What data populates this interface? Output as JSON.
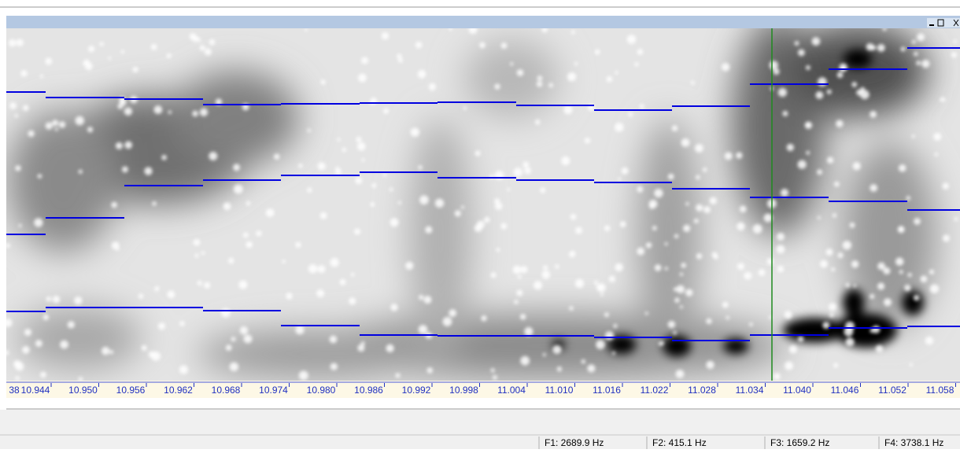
{
  "time_axis": {
    "labels": [
      "38",
      "10.944",
      "10.950",
      "10.956",
      "10.962",
      "10.968",
      "10.974",
      "10.980",
      "10.986",
      "10.992",
      "10.998",
      "11.004",
      "11.010",
      "11.016",
      "11.022",
      "11.028",
      "11.034",
      "11.040",
      "11.046",
      "11.052",
      "11.058"
    ]
  },
  "status_bar": {
    "fields": [
      "F1: 2689.9 Hz",
      "F2: 415.1 Hz",
      "F3: 1659.2 Hz",
      "F4: 3738.1 Hz"
    ]
  }
}
